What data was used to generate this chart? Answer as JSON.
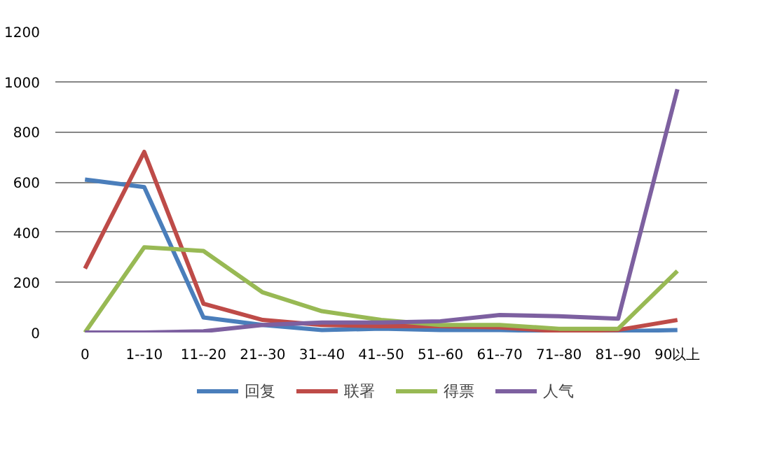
{
  "chart_data": {
    "type": "line",
    "categories": [
      "0",
      "1--10",
      "11--20",
      "21--30",
      "31--40",
      "41--50",
      "51--60",
      "61--70",
      "71--80",
      "81--90",
      "90以上"
    ],
    "series": [
      {
        "name": "回复",
        "color": "#4a7ebb",
        "values": [
          610,
          580,
          60,
          30,
          10,
          15,
          10,
          10,
          5,
          5,
          10
        ]
      },
      {
        "name": "联署",
        "color": "#be4b48",
        "values": [
          255,
          720,
          115,
          50,
          30,
          25,
          25,
          20,
          5,
          10,
          50
        ]
      },
      {
        "name": "得票",
        "color": "#98b954",
        "values": [
          0,
          340,
          325,
          160,
          85,
          50,
          30,
          30,
          15,
          15,
          245
        ]
      },
      {
        "name": "人气",
        "color": "#7d60a0",
        "values": [
          0,
          0,
          5,
          30,
          40,
          40,
          45,
          70,
          65,
          55,
          970
        ]
      }
    ],
    "ylim": [
      0,
      1200
    ],
    "yticks": [
      0,
      200,
      400,
      600,
      800,
      1000,
      1200
    ],
    "grid": "y",
    "legend": "bottom",
    "marker": "none",
    "line_style": "solid"
  }
}
